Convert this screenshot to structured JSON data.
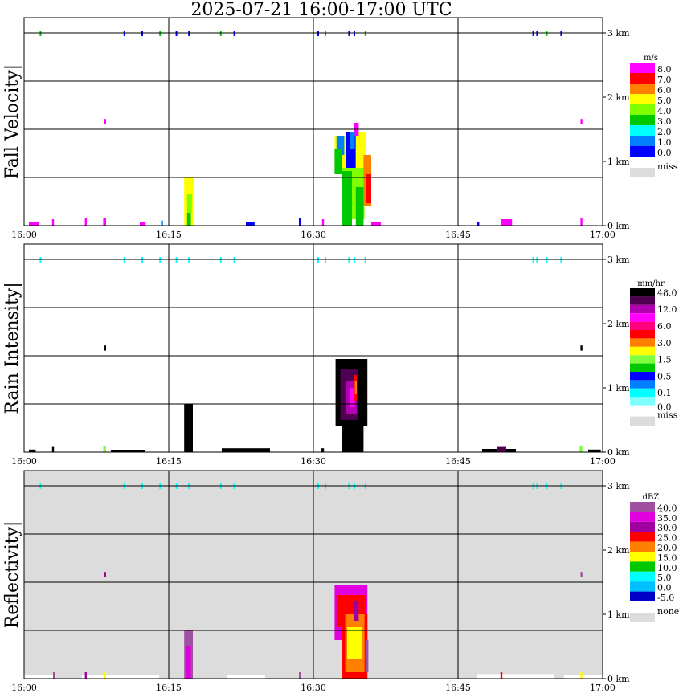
{
  "title": "2025-07-21   16:00-17:00 UTC",
  "chart_data": [
    {
      "type": "heatmap",
      "ylabel": "Fall Velocity",
      "units": "m/s",
      "bg": "#ffffff",
      "xlim": [
        "16:00",
        "17:00"
      ],
      "x_ticks": [
        "16:00",
        "16:15",
        "16:30",
        "16:45",
        "17:00"
      ],
      "ylim_km": [
        0,
        3.24
      ],
      "y_ticks": [
        "3 km",
        "2 km",
        "1 km",
        "0 km"
      ],
      "legend": {
        "labels": [
          "8.0",
          "7.0",
          "6.0",
          "5.0",
          "4.0",
          "3.0",
          "2.0",
          "1.0",
          "0.0"
        ],
        "colors": [
          "#ff00ff",
          "#ff0000",
          "#ff8000",
          "#ffff00",
          "#80ff00",
          "#00c800",
          "#00ffff",
          "#0080ff",
          "#0000ff"
        ],
        "miss_label": "miss",
        "miss_color": "#dcdcdc"
      },
      "echoes": [
        [
          16.6,
          17.6,
          0,
          0.75,
          5
        ],
        [
          16.9,
          17.4,
          0.2,
          0.5,
          4
        ],
        [
          16.9,
          17.3,
          0,
          0.2,
          3
        ],
        [
          32.2,
          33.4,
          0.85,
          1.4,
          5
        ],
        [
          32.4,
          33.2,
          1.1,
          1.4,
          1
        ],
        [
          33.4,
          34.4,
          0.9,
          1.45,
          0
        ],
        [
          34.4,
          35.5,
          0.9,
          1.45,
          5
        ],
        [
          32.2,
          33.0,
          0.8,
          1.2,
          3
        ],
        [
          33.0,
          35.3,
          0.1,
          0.9,
          4
        ],
        [
          33.0,
          34.0,
          0,
          0.85,
          3
        ],
        [
          34.4,
          35.2,
          0,
          0.6,
          3
        ],
        [
          35.2,
          36.0,
          0.3,
          1.1,
          6
        ],
        [
          35.5,
          36.0,
          0.35,
          0.8,
          7
        ],
        [
          34.2,
          34.7,
          1.4,
          1.6,
          8
        ],
        [
          33.8,
          34.3,
          1.2,
          1.45,
          1
        ],
        [
          8.3,
          8.5,
          1.58,
          1.66,
          8
        ],
        [
          57.7,
          57.9,
          1.58,
          1.66,
          8
        ],
        [
          8.2,
          8.5,
          0,
          0.12,
          8
        ],
        [
          0.5,
          1.5,
          0,
          0.05,
          8
        ],
        [
          2.9,
          3.1,
          0,
          0.1,
          8
        ],
        [
          6.3,
          6.5,
          0,
          0.12,
          8
        ],
        [
          12,
          12.6,
          0,
          0.05,
          8
        ],
        [
          14.2,
          14.4,
          0,
          0.08,
          1
        ],
        [
          23,
          23.9,
          0,
          0.05,
          0
        ],
        [
          28.5,
          28.7,
          0,
          0.12,
          0
        ],
        [
          30.9,
          31.1,
          0,
          0.1,
          8
        ],
        [
          36,
          37,
          0,
          0.05,
          8
        ],
        [
          47,
          47.2,
          0,
          0.05,
          0
        ],
        [
          49.5,
          50.6,
          0,
          0.1,
          8
        ],
        [
          57.7,
          57.9,
          0,
          0.12,
          8
        ]
      ]
    },
    {
      "type": "heatmap",
      "ylabel": "Rain Intensity",
      "units": "mm/hr",
      "bg": "#ffffff",
      "xlim": [
        "16:00",
        "17:00"
      ],
      "x_ticks": [
        "16:00",
        "16:15",
        "16:30",
        "16:45",
        "17:00"
      ],
      "ylim_km": [
        0,
        3.24
      ],
      "y_ticks": [
        "3 km",
        "2 km",
        "1 km",
        "0 km"
      ],
      "legend": {
        "labels": [
          "48.0",
          "",
          "12.0",
          "",
          "6.0",
          "",
          "3.0",
          "",
          "1.5",
          "",
          "0.5",
          "",
          "0.1",
          "0.0"
        ],
        "colors": [
          "#000000",
          "#500050",
          "#b000b0",
          "#ff00ff",
          "#ff0080",
          "#ff0000",
          "#ff8000",
          "#ffff00",
          "#80ff40",
          "#00c800",
          "#0000ff",
          "#0080ff",
          "#00ffff",
          "#80ffff"
        ],
        "miss_label": "miss",
        "miss_color": "#dcdcdc"
      },
      "echoes": [
        [
          16.6,
          17.5,
          0,
          0.75,
          13
        ],
        [
          32.3,
          35.6,
          0.4,
          1.45,
          13
        ],
        [
          33.0,
          35.2,
          0,
          0.9,
          13
        ],
        [
          32.8,
          34.6,
          0.5,
          1.3,
          12
        ],
        [
          33.4,
          34.5,
          0.6,
          1.1,
          11
        ],
        [
          33.8,
          34.3,
          0.7,
          1.0,
          10
        ],
        [
          34.2,
          34.5,
          0.8,
          1.2,
          8
        ],
        [
          34.3,
          34.5,
          0.9,
          1.1,
          7
        ],
        [
          8.3,
          8.5,
          1.58,
          1.66,
          13
        ],
        [
          57.7,
          57.9,
          1.58,
          1.66,
          13
        ],
        [
          0.5,
          1.2,
          0,
          0.04,
          13
        ],
        [
          2.9,
          3.1,
          0,
          0.08,
          13
        ],
        [
          8.2,
          8.5,
          0,
          0.1,
          5
        ],
        [
          9,
          12.5,
          0,
          0.03,
          13
        ],
        [
          20.5,
          25.5,
          0,
          0.06,
          13
        ],
        [
          30.8,
          31.1,
          0,
          0.06,
          13
        ],
        [
          47.5,
          51,
          0,
          0.05,
          13
        ],
        [
          49,
          50,
          0,
          0.08,
          12
        ],
        [
          57.6,
          57.9,
          0,
          0.1,
          5
        ],
        [
          58.5,
          59.8,
          0,
          0.04,
          13
        ]
      ]
    },
    {
      "type": "heatmap",
      "ylabel": "Reflectivity",
      "units": "dBZ",
      "bg": "#dcdcdc",
      "xlim": [
        "16:00",
        "17:00"
      ],
      "x_ticks": [
        "16:00",
        "16:15",
        "16:30",
        "16:45",
        "17:00"
      ],
      "ylim_km": [
        0,
        3.24
      ],
      "y_ticks": [
        "3 km",
        "2 km",
        "1 km",
        "0 km"
      ],
      "legend": {
        "labels": [
          "40.0",
          "35.0",
          "30.0",
          "25.0",
          "20.0",
          "15.0",
          "10.0",
          "5.0",
          "0.0",
          "-5.0"
        ],
        "colors": [
          "#a050a0",
          "#e000e0",
          "#a000a0",
          "#ff0000",
          "#ff8000",
          "#ffff00",
          "#00c800",
          "#00ffff",
          "#00c0ff",
          "#0000c8"
        ],
        "miss_label": "none",
        "miss_color": "#dcdcdc"
      },
      "echoes": [
        [
          0,
          3,
          0,
          0.05,
          -1
        ],
        [
          6,
          14,
          0,
          0.06,
          -1
        ],
        [
          21,
          25,
          0,
          0.05,
          -1
        ],
        [
          47,
          55,
          0,
          0.07,
          -1
        ],
        [
          56,
          60,
          0,
          0.06,
          -1
        ],
        [
          16.6,
          17.5,
          0,
          0.75,
          9
        ],
        [
          16.8,
          17.3,
          0,
          0.5,
          8
        ],
        [
          32.2,
          35.6,
          0.6,
          1.45,
          8
        ],
        [
          32.4,
          35.4,
          0.8,
          1.3,
          6
        ],
        [
          33.0,
          35.6,
          0,
          1.0,
          6
        ],
        [
          33.3,
          35.3,
          0.1,
          1.0,
          5
        ],
        [
          33.5,
          35.0,
          0.3,
          0.8,
          4
        ],
        [
          34.2,
          34.7,
          0.9,
          1.2,
          7
        ],
        [
          35.4,
          35.7,
          0.1,
          0.6,
          9
        ],
        [
          8.3,
          8.5,
          1.58,
          1.66,
          7
        ],
        [
          57.7,
          57.9,
          1.58,
          1.66,
          9
        ],
        [
          3,
          3.2,
          0,
          0.1,
          9
        ],
        [
          6.3,
          6.5,
          0,
          0.1,
          7
        ],
        [
          8.3,
          8.5,
          0,
          0.1,
          4
        ],
        [
          28.5,
          28.7,
          0,
          0.1,
          9
        ],
        [
          49.4,
          49.6,
          0,
          0.1,
          6
        ],
        [
          57.7,
          57.9,
          0,
          0.1,
          4
        ]
      ]
    }
  ],
  "top_dots_min": [
    1.7,
    10.4,
    12.25,
    14.1,
    15.8,
    17.1,
    20.4,
    21.8,
    30.5,
    31.25,
    33.7,
    34.25,
    35.4,
    52.8,
    53.2,
    54.2,
    55.7
  ]
}
